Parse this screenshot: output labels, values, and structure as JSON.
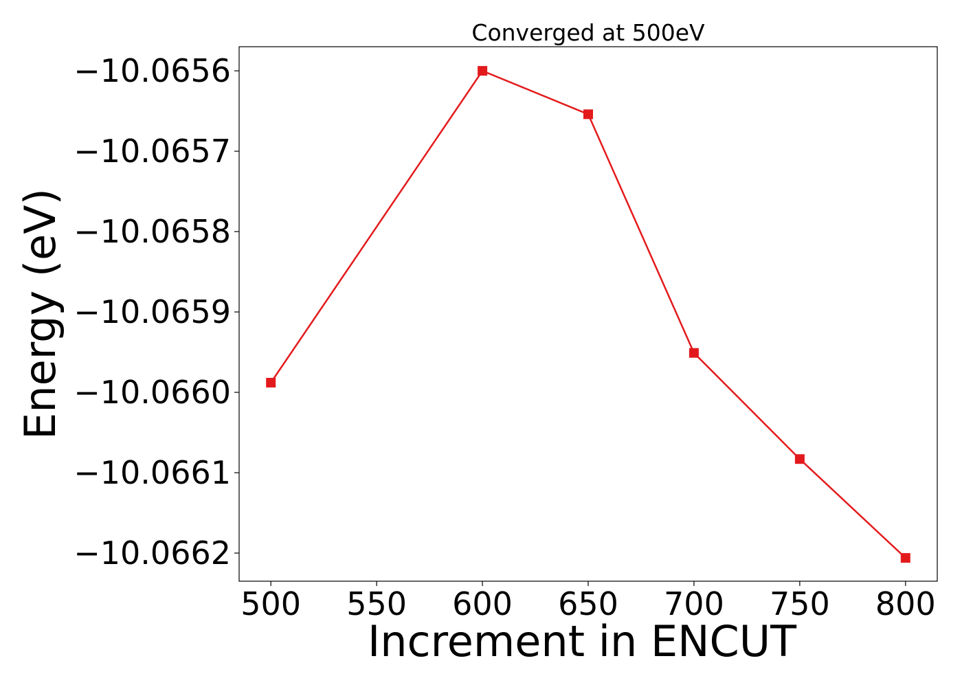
{
  "chart_data": {
    "type": "line",
    "title": "Converged at 500eV",
    "xlabel": "Increment in ENCUT",
    "ylabel": "Energy (eV)",
    "x": [
      500,
      600,
      650,
      700,
      750,
      800
    ],
    "series": [
      {
        "values": [
          -10.065988,
          -10.0656,
          -10.065654,
          -10.065951,
          -10.066083,
          -10.066206
        ]
      }
    ],
    "xlim": [
      485,
      815
    ],
    "ylim": [
      -10.066235,
      -10.06557
    ],
    "xticks": [
      500,
      550,
      600,
      650,
      700,
      750,
      800
    ],
    "xtick_labels": [
      "500",
      "550",
      "600",
      "650",
      "700",
      "750",
      "800"
    ],
    "yticks": [
      -10.0656,
      -10.0657,
      -10.0658,
      -10.0659,
      -10.066,
      -10.0661,
      -10.0662
    ],
    "ytick_labels": [
      "−10.0656",
      "−10.0657",
      "−10.0658",
      "−10.0659",
      "−10.0660",
      "−10.0661",
      "−10.0662"
    ],
    "marker": "square",
    "grid": false,
    "legend": false,
    "colors": {
      "line": "#e31a1c",
      "axes": "#000000"
    }
  }
}
